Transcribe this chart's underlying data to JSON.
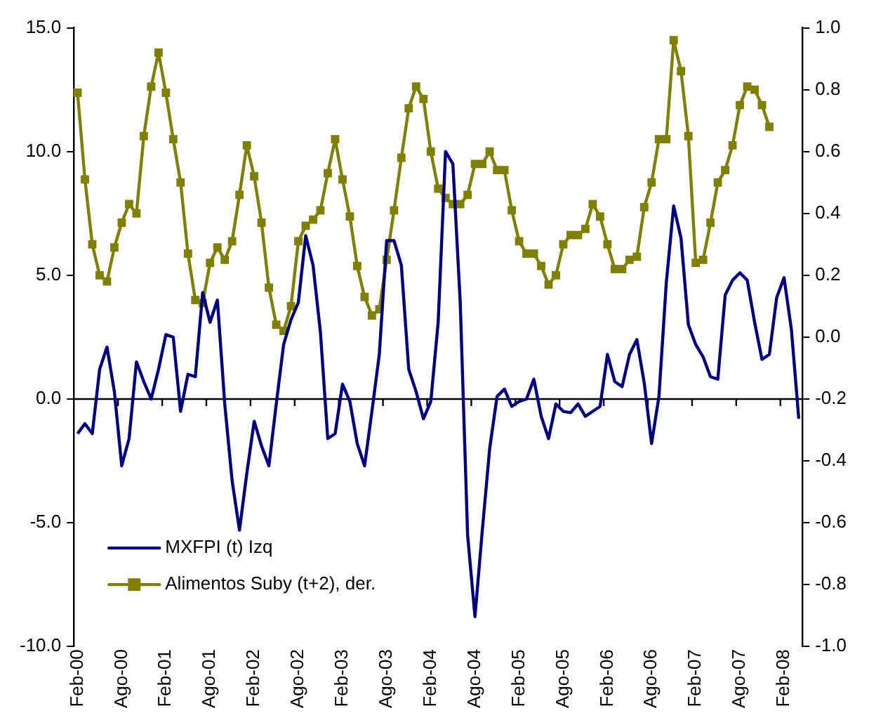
{
  "chart_data": {
    "type": "line",
    "categories": [
      "Feb-00",
      null,
      null,
      null,
      null,
      null,
      "Ago-00",
      null,
      null,
      null,
      null,
      null,
      "Feb-01",
      null,
      null,
      null,
      null,
      null,
      "Ago-01",
      null,
      null,
      null,
      null,
      null,
      "Feb-02",
      null,
      null,
      null,
      null,
      null,
      "Ago-02",
      null,
      null,
      null,
      null,
      null,
      "Feb-03",
      null,
      null,
      null,
      null,
      null,
      "Ago-03",
      null,
      null,
      null,
      null,
      null,
      "Feb-04",
      null,
      null,
      null,
      null,
      null,
      "Ago-04",
      null,
      null,
      null,
      null,
      null,
      "Feb-05",
      null,
      null,
      null,
      null,
      null,
      "Ago-05",
      null,
      null,
      null,
      null,
      null,
      "Feb-06",
      null,
      null,
      null,
      null,
      null,
      "Ago-06",
      null,
      null,
      null,
      null,
      null,
      "Feb-07",
      null,
      null,
      null,
      null,
      null,
      "Ago-07",
      null,
      null,
      null,
      null,
      null,
      "Feb-08",
      null,
      null
    ],
    "series": [
      {
        "name": "MXFPI (t) Izq",
        "color": "#000080",
        "marker": "none",
        "values": [
          -1.4,
          -1.0,
          -1.4,
          1.2,
          2.1,
          0.3,
          -2.7,
          -1.6,
          1.5,
          0.7,
          0.0,
          1.2,
          2.6,
          2.5,
          -0.5,
          1.0,
          0.9,
          4.3,
          3.1,
          4.0,
          -0.2,
          -3.3,
          -5.3,
          -3.0,
          -0.9,
          -1.9,
          -2.7,
          -0.2,
          2.2,
          3.2,
          3.9,
          6.6,
          5.4,
          2.7,
          -1.6,
          -1.4,
          0.6,
          -0.1,
          -1.8,
          -2.7,
          -0.5,
          1.8,
          6.4,
          6.4,
          5.4,
          1.2,
          0.3,
          -0.8,
          -0.1,
          3.1,
          10.0,
          9.5,
          3.9,
          -5.5,
          -8.8,
          -5.3,
          -2.0,
          0.1,
          0.4,
          -0.3,
          -0.1,
          0.0,
          0.8,
          -0.7,
          -1.6,
          -0.2,
          -0.5,
          -0.55,
          -0.2,
          -0.7,
          -0.5,
          -0.3,
          1.8,
          0.7,
          0.5,
          1.8,
          2.4,
          0.65,
          -1.8,
          0.1,
          4.7,
          7.8,
          6.5,
          3.0,
          2.2,
          1.7,
          0.9,
          0.8,
          4.2,
          4.8,
          5.1,
          4.8,
          3.1,
          1.6,
          1.8,
          4.1,
          4.9,
          2.8,
          -0.8
        ]
      },
      {
        "name": "Alimentos Suby (t+2), der.",
        "color": "#808000",
        "marker": "square",
        "axis": "y2",
        "values": [
          0.79,
          0.51,
          0.3,
          0.2,
          0.18,
          0.29,
          0.37,
          0.43,
          0.4,
          0.65,
          0.81,
          0.92,
          0.79,
          0.64,
          0.5,
          0.27,
          0.12,
          0.11,
          0.24,
          0.29,
          0.25,
          0.31,
          0.46,
          0.62,
          0.52,
          0.37,
          0.16,
          0.04,
          0.02,
          0.1,
          0.31,
          0.36,
          0.38,
          0.41,
          0.53,
          0.64,
          0.51,
          0.39,
          0.23,
          0.13,
          0.07,
          0.09,
          0.25,
          0.41,
          0.58,
          0.74,
          0.81,
          0.77,
          0.6,
          0.48,
          0.45,
          0.43,
          0.43,
          0.46,
          0.56,
          0.56,
          0.6,
          0.54,
          0.54,
          0.41,
          0.31,
          0.27,
          0.27,
          0.23,
          0.17,
          0.2,
          0.3,
          0.33,
          0.33,
          0.35,
          0.43,
          0.39,
          0.3,
          0.22,
          0.22,
          0.25,
          0.26,
          0.42,
          0.5,
          0.64,
          0.64,
          0.96,
          0.86,
          0.65,
          0.24,
          0.25,
          0.37,
          0.5,
          0.54,
          0.62,
          0.75,
          0.81,
          0.8,
          0.75,
          0.68,
          null,
          null,
          null,
          null
        ]
      }
    ],
    "ylim": [
      -10,
      15
    ],
    "yticks": [
      {
        "value": -10,
        "label": "-10.0"
      },
      {
        "value": -5,
        "label": "-5.0"
      },
      {
        "value": 0,
        "label": "0.0"
      },
      {
        "value": 5,
        "label": "5.0"
      },
      {
        "value": 10,
        "label": "10.0"
      },
      {
        "value": 15,
        "label": "15.0"
      }
    ],
    "y2lim": [
      -1,
      1
    ],
    "y2ticks": [
      {
        "value": -1,
        "label": "-1.0"
      },
      {
        "value": -0.8,
        "label": "-0.8"
      },
      {
        "value": -0.6,
        "label": "-0.6"
      },
      {
        "value": -0.4,
        "label": "-0.4"
      },
      {
        "value": -0.2,
        "label": "-0.2"
      },
      {
        "value": 0,
        "label": "0.0"
      },
      {
        "value": 0.2,
        "label": "0.2"
      },
      {
        "value": 0.4,
        "label": "0.4"
      },
      {
        "value": 0.6,
        "label": "0.6"
      },
      {
        "value": 0.8,
        "label": "0.8"
      },
      {
        "value": 1,
        "label": "1.0"
      }
    ],
    "legend": "bottom left"
  }
}
